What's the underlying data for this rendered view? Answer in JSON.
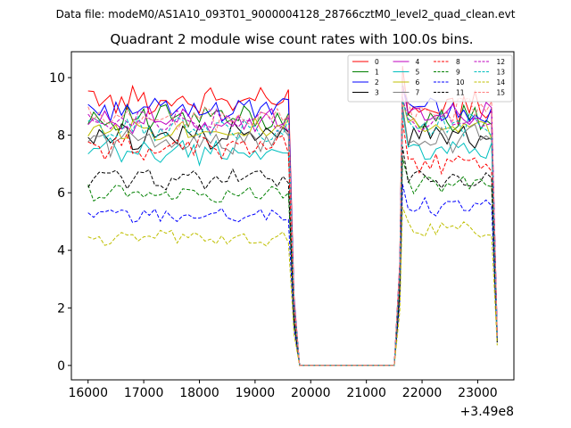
{
  "header": {
    "data_file_text": "Data file: modeM0/AS1A10_093T01_9000004128_28766cztM0_level2_quad_clean.evt"
  },
  "chart_data": {
    "type": "line",
    "title": "Quadrant 2 module wise count rates with 100.0s bins.",
    "xlabel": "",
    "ylabel": "",
    "x_offset_label": "+3.49e8",
    "xlim": [
      15700,
      23650
    ],
    "ylim": [
      -0.5,
      10.9
    ],
    "x_ticks": [
      16000,
      17000,
      18000,
      19000,
      20000,
      21000,
      22000,
      23000
    ],
    "x_tick_labels": [
      "16000",
      "17000",
      "18000",
      "19000",
      "20000",
      "21000",
      "22000",
      "23000"
    ],
    "y_ticks": [
      0,
      2,
      4,
      6,
      8,
      10
    ],
    "y_tick_labels": [
      "0",
      "2",
      "4",
      "6",
      "8",
      "10"
    ],
    "grid": false,
    "legend_position": "top-right",
    "legend_columns": 4,
    "segments": {
      "seg1_start": 16000,
      "seg1_step": 100,
      "seg1_end": 19600,
      "gap_times": [
        19700,
        19800,
        21500,
        21600
      ],
      "seg2_start": 21650,
      "seg2_step": 100,
      "seg2_end": 23250,
      "end_time": 23350
    },
    "series": [
      {
        "name": "0",
        "color": "#ff0000",
        "dash": "solid",
        "level1": 9.2,
        "amp1": 0.4,
        "level2": 9.0,
        "amp2": 0.5,
        "peak": 10.4,
        "end": 1.2
      },
      {
        "name": "1",
        "color": "#008000",
        "dash": "solid",
        "level1": 8.6,
        "amp1": 0.4,
        "level2": 8.7,
        "amp2": 0.4,
        "peak": 9.8,
        "end": 1.0
      },
      {
        "name": "2",
        "color": "#0000ff",
        "dash": "solid",
        "level1": 8.9,
        "amp1": 0.35,
        "level2": 8.8,
        "amp2": 0.4,
        "peak": 9.6,
        "end": 1.1
      },
      {
        "name": "3",
        "color": "#000000",
        "dash": "solid",
        "level1": 8.0,
        "amp1": 0.4,
        "level2": 8.0,
        "amp2": 0.4,
        "peak": 9.0,
        "end": 0.9
      },
      {
        "name": "4",
        "color": "#bf00bf",
        "dash": "solid",
        "level1": 8.5,
        "amp1": 0.35,
        "level2": 8.6,
        "amp2": 0.4,
        "peak": 9.7,
        "end": 1.0
      },
      {
        "name": "5",
        "color": "#00bfbf",
        "dash": "solid",
        "level1": 7.4,
        "amp1": 0.4,
        "level2": 7.5,
        "amp2": 0.4,
        "peak": 8.8,
        "end": 0.9
      },
      {
        "name": "6",
        "color": "#bfbf00",
        "dash": "solid",
        "level1": 8.2,
        "amp1": 0.3,
        "level2": 8.2,
        "amp2": 0.3,
        "peak": 9.2,
        "end": 1.0
      },
      {
        "name": "7",
        "color": "#808080",
        "dash": "solid",
        "level1": 7.8,
        "amp1": 0.4,
        "level2": 7.9,
        "amp2": 0.4,
        "peak": 9.0,
        "end": 0.9
      },
      {
        "name": "8",
        "color": "#ff0000",
        "dash": "dashed",
        "level1": 7.6,
        "amp1": 0.35,
        "level2": 7.0,
        "amp2": 0.35,
        "peak": 8.5,
        "end": 0.8
      },
      {
        "name": "9",
        "color": "#008000",
        "dash": "dashed",
        "level1": 6.0,
        "amp1": 0.25,
        "level2": 6.3,
        "amp2": 0.25,
        "peak": 7.2,
        "end": 0.8
      },
      {
        "name": "10",
        "color": "#0000ff",
        "dash": "dashed",
        "level1": 5.2,
        "amp1": 0.25,
        "level2": 5.5,
        "amp2": 0.25,
        "peak": 6.3,
        "end": 0.8
      },
      {
        "name": "11",
        "color": "#000000",
        "dash": "dashed",
        "level1": 6.5,
        "amp1": 0.3,
        "level2": 6.4,
        "amp2": 0.3,
        "peak": 7.6,
        "end": 0.8
      },
      {
        "name": "12",
        "color": "#bf00bf",
        "dash": "dashed",
        "level1": 8.5,
        "amp1": 0.3,
        "level2": 8.4,
        "amp2": 0.35,
        "peak": 9.3,
        "end": 1.0
      },
      {
        "name": "13",
        "color": "#00bfbf",
        "dash": "dashed",
        "level1": 8.2,
        "amp1": 0.35,
        "level2": 8.3,
        "amp2": 0.35,
        "peak": 9.2,
        "end": 1.0
      },
      {
        "name": "14",
        "color": "#bfbf00",
        "dash": "dashed",
        "level1": 4.4,
        "amp1": 0.25,
        "level2": 4.7,
        "amp2": 0.25,
        "peak": 5.5,
        "end": 0.7
      },
      {
        "name": "15",
        "color": "#ff7f7f",
        "dash": "dashed",
        "level1": 8.6,
        "amp1": 0.35,
        "level2": 8.9,
        "amp2": 0.4,
        "peak": 9.8,
        "end": 1.0
      }
    ]
  }
}
